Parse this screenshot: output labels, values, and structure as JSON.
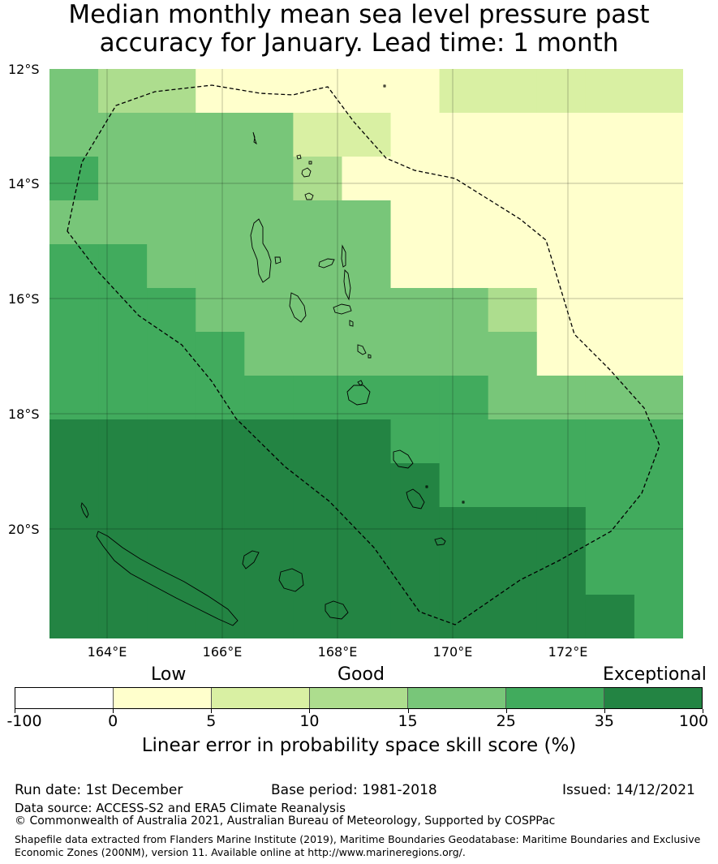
{
  "title": {
    "line1": "Median monthly mean sea level pressure past",
    "line2": "accuracy for January. Lead time: 1 month"
  },
  "map": {
    "lat_labels": [
      "12°S",
      "14°S",
      "16°S",
      "18°S",
      "20°S"
    ],
    "lon_labels": [
      "164°E",
      "166°E",
      "168°E",
      "170°E",
      "172°E"
    ],
    "class_colors": [
      "#ffffff",
      "#ffffcc",
      "#d9f0a3",
      "#addd8e",
      "#78c679",
      "#41ab5d",
      "#238443"
    ],
    "grid_classes": [
      [
        5,
        4,
        4,
        4,
        4,
        4,
        3,
        3,
        3,
        3,
        3,
        2,
        1,
        1,
        1,
        1,
        1,
        1,
        1,
        1,
        1,
        1,
        1,
        1,
        1,
        1,
        1,
        1,
        1,
        1,
        1,
        1,
        1,
        2,
        2,
        2,
        2,
        2,
        2,
        2,
        2,
        2,
        2,
        2,
        2,
        2,
        2,
        2,
        2,
        2,
        2,
        2,
        2,
        2,
        2,
        2,
        2
      ],
      [
        5,
        5,
        4,
        4,
        4,
        4,
        4,
        4,
        4,
        4,
        4,
        4,
        4,
        4,
        4,
        4,
        4,
        4,
        4,
        4,
        4,
        4,
        4,
        4,
        2,
        2,
        2,
        2,
        2,
        1,
        1,
        1,
        1,
        1,
        1,
        1,
        1,
        1,
        1,
        1,
        1,
        1,
        1,
        1,
        1,
        1,
        1,
        1,
        1,
        1,
        1,
        1,
        1,
        1,
        1,
        1,
        1
      ],
      [
        5,
        5,
        5,
        5,
        5,
        5,
        4,
        4,
        4,
        4,
        4,
        4,
        4,
        4,
        4,
        4,
        4,
        4,
        4,
        4,
        4,
        4,
        3,
        3,
        3,
        3,
        3,
        3,
        1,
        1,
        1,
        1,
        1,
        1,
        1,
        1,
        1,
        1,
        1,
        1,
        1,
        1,
        1,
        1,
        1,
        1,
        1,
        1,
        1,
        1,
        1,
        1,
        1,
        1,
        1,
        1,
        1
      ],
      [
        4,
        4,
        4,
        4,
        4,
        4,
        4,
        4,
        4,
        4,
        4,
        4,
        4,
        4,
        4,
        4,
        4,
        4,
        4,
        4,
        4,
        4,
        4,
        4,
        4,
        4,
        4,
        4,
        4,
        4,
        1,
        1,
        1,
        1,
        1,
        1,
        1,
        1,
        1,
        1,
        1,
        1,
        1,
        1,
        1,
        1,
        1,
        1,
        1,
        1,
        1,
        1,
        1,
        1,
        1,
        1,
        1
      ],
      [
        5,
        5,
        5,
        5,
        5,
        5,
        5,
        5,
        5,
        5,
        4,
        4,
        4,
        4,
        4,
        4,
        4,
        4,
        4,
        4,
        4,
        4,
        4,
        4,
        4,
        4,
        4,
        4,
        4,
        4,
        4,
        4,
        1,
        1,
        1,
        1,
        1,
        1,
        1,
        1,
        1,
        1,
        1,
        1,
        1,
        1,
        1,
        1,
        1,
        1,
        1,
        1,
        1,
        1,
        1,
        1,
        1
      ],
      [
        5,
        5,
        5,
        5,
        5,
        5,
        5,
        5,
        5,
        5,
        5,
        4,
        4,
        4,
        4,
        4,
        4,
        4,
        4,
        4,
        4,
        4,
        4,
        4,
        4,
        4,
        4,
        4,
        4,
        4,
        4,
        4,
        4,
        4,
        4,
        4,
        4,
        4,
        4,
        3,
        3,
        3,
        3,
        3,
        1,
        1,
        1,
        1,
        1,
        1,
        1,
        1,
        1,
        1,
        1,
        1,
        1
      ],
      [
        5,
        5,
        5,
        5,
        5,
        5,
        5,
        5,
        5,
        5,
        5,
        5,
        5,
        5,
        5,
        5,
        4,
        4,
        4,
        4,
        4,
        4,
        4,
        4,
        4,
        4,
        4,
        4,
        4,
        4,
        4,
        4,
        4,
        4,
        4,
        4,
        4,
        4,
        4,
        4,
        4,
        4,
        4,
        4,
        4,
        4,
        1,
        1,
        1,
        1,
        1,
        1,
        1,
        1,
        1,
        1,
        1
      ],
      [
        6,
        6,
        5,
        5,
        5,
        5,
        5,
        5,
        5,
        5,
        5,
        5,
        5,
        5,
        5,
        5,
        5,
        5,
        5,
        5,
        5,
        5,
        5,
        5,
        5,
        5,
        5,
        5,
        5,
        5,
        5,
        5,
        5,
        5,
        5,
        5,
        5,
        5,
        5,
        4,
        4,
        4,
        4,
        4,
        4,
        4,
        4,
        4,
        4,
        4,
        4,
        4,
        4,
        4,
        4,
        4,
        4
      ],
      [
        6,
        6,
        6,
        6,
        6,
        6,
        6,
        6,
        6,
        6,
        6,
        6,
        6,
        6,
        6,
        6,
        6,
        6,
        6,
        6,
        6,
        6,
        6,
        6,
        6,
        6,
        6,
        6,
        6,
        6,
        5,
        5,
        5,
        5,
        5,
        5,
        5,
        5,
        5,
        5,
        5,
        5,
        5,
        5,
        5,
        5,
        5,
        5,
        5,
        5,
        5,
        5,
        5,
        5,
        5,
        5,
        5
      ],
      [
        6,
        6,
        6,
        6,
        6,
        6,
        6,
        6,
        6,
        6,
        6,
        6,
        6,
        6,
        6,
        6,
        6,
        6,
        6,
        6,
        6,
        6,
        6,
        6,
        6,
        6,
        6,
        6,
        6,
        6,
        6,
        6,
        6,
        6,
        5,
        5,
        5,
        5,
        5,
        5,
        5,
        5,
        5,
        5,
        5,
        5,
        5,
        5,
        5,
        5,
        5,
        5,
        5,
        5,
        5,
        5,
        5
      ],
      [
        6,
        6,
        6,
        6,
        6,
        6,
        6,
        6,
        6,
        6,
        6,
        6,
        6,
        6,
        6,
        6,
        6,
        6,
        6,
        6,
        6,
        6,
        6,
        6,
        6,
        6,
        6,
        6,
        6,
        6,
        6,
        6,
        6,
        6,
        6,
        6,
        6,
        6,
        6,
        6,
        6,
        6,
        6,
        6,
        6,
        6,
        6,
        6,
        6,
        6,
        5,
        5,
        5,
        5,
        5,
        5,
        5
      ],
      [
        6,
        6,
        6,
        6,
        6,
        6,
        6,
        6,
        6,
        6,
        6,
        6,
        6,
        6,
        6,
        6,
        6,
        6,
        6,
        6,
        6,
        6,
        6,
        6,
        6,
        6,
        6,
        6,
        6,
        6,
        6,
        6,
        6,
        6,
        6,
        6,
        6,
        6,
        6,
        6,
        6,
        6,
        6,
        6,
        6,
        6,
        6,
        6,
        6,
        6,
        5,
        5,
        5,
        5,
        5,
        5,
        5
      ],
      [
        6,
        6,
        6,
        6,
        6,
        6,
        6,
        6,
        6,
        6,
        6,
        6,
        6,
        6,
        6,
        6,
        6,
        6,
        6,
        6,
        6,
        6,
        6,
        6,
        6,
        6,
        6,
        6,
        6,
        6,
        6,
        6,
        6,
        6,
        6,
        6,
        6,
        6,
        6,
        6,
        6,
        6,
        6,
        6,
        6,
        6,
        6,
        6,
        6,
        6,
        6,
        6,
        5,
        5,
        5,
        5,
        5
      ]
    ],
    "grid_rows_used_note": ""
  },
  "colorbar": {
    "category_labels": [
      "Low",
      "Good",
      "Exceptional"
    ],
    "tick_labels": [
      "-100",
      "0",
      "5",
      "10",
      "15",
      "25",
      "35",
      "100"
    ],
    "colors": [
      "#ffffff",
      "#ffffcc",
      "#d9f0a3",
      "#addd8e",
      "#78c679",
      "#41ab5d",
      "#238443"
    ],
    "label": "Linear error in probability space skill score (%)"
  },
  "footer": {
    "run_date": "Run date: 1st December",
    "base_period": "Base period: 1981-2018",
    "issued": "Issued: 14/12/2021",
    "data_source": "Data source: ACCESS-S2 and ERA5 Climate Reanalysis",
    "copyright": "© Commonwealth of Australia 2021, Australian Bureau of Meteorology, Supported by COSPPac",
    "shapefile_line1": "Shapefile data extracted from Flanders Marine Institute (2019), Maritime Boundaries Geodatabase: Maritime Boundaries and Exclusive",
    "shapefile_line2": "Economic Zones (200NM), version 11. Available online at http://www.marineregions.org/."
  }
}
